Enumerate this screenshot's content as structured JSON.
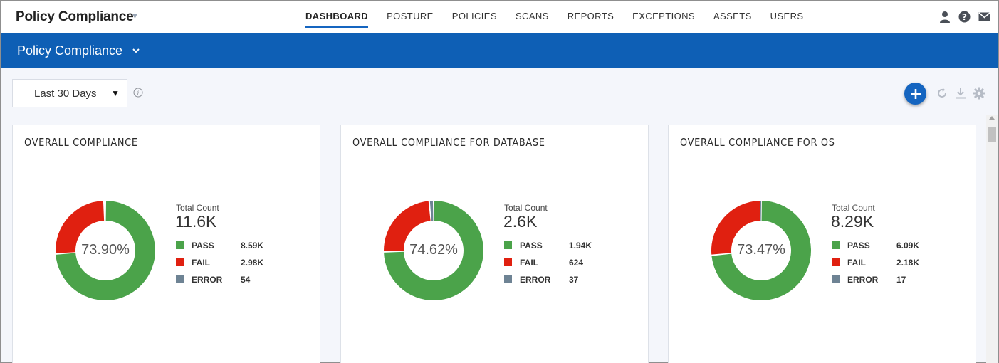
{
  "app": {
    "title": "Policy Compliance"
  },
  "nav": {
    "tabs": [
      {
        "label": "DASHBOARD",
        "active": true
      },
      {
        "label": "POSTURE"
      },
      {
        "label": "POLICIES"
      },
      {
        "label": "SCANS"
      },
      {
        "label": "REPORTS"
      },
      {
        "label": "EXCEPTIONS"
      },
      {
        "label": "ASSETS"
      },
      {
        "label": "USERS"
      }
    ],
    "icons": [
      "user-icon",
      "help-icon",
      "mail-icon"
    ]
  },
  "module": {
    "title": "Policy Compliance"
  },
  "toolbar": {
    "date_range": "Last 30 Days",
    "icons": [
      "info-icon",
      "add-icon",
      "refresh-icon",
      "download-icon",
      "settings-icon"
    ]
  },
  "colors": {
    "pass": "#4ba34a",
    "fail": "#e02010",
    "error": "#6e8394",
    "brand": "#0e5fb5"
  },
  "cards": [
    {
      "title": "OVERALL COMPLIANCE",
      "percent": "73.90%",
      "total_label": "Total Count",
      "total": "11.6K",
      "legend": [
        {
          "label": "PASS",
          "value": "8.59K"
        },
        {
          "label": "FAIL",
          "value": "2.98K"
        },
        {
          "label": "ERROR",
          "value": "54"
        }
      ]
    },
    {
      "title": "OVERALL COMPLIANCE FOR DATABASE",
      "percent": "74.62%",
      "total_label": "Total Count",
      "total": "2.6K",
      "legend": [
        {
          "label": "PASS",
          "value": "1.94K"
        },
        {
          "label": "FAIL",
          "value": "624"
        },
        {
          "label": "ERROR",
          "value": "37"
        }
      ]
    },
    {
      "title": "OVERALL COMPLIANCE FOR OS",
      "percent": "73.47%",
      "total_label": "Total Count",
      "total": "8.29K",
      "legend": [
        {
          "label": "PASS",
          "value": "6.09K"
        },
        {
          "label": "FAIL",
          "value": "2.18K"
        },
        {
          "label": "ERROR",
          "value": "17"
        }
      ]
    }
  ],
  "chart_data": [
    {
      "type": "pie",
      "title": "OVERALL COMPLIANCE",
      "categories": [
        "PASS",
        "FAIL",
        "ERROR"
      ],
      "values": [
        8590,
        2980,
        54
      ],
      "center_label": "73.90%"
    },
    {
      "type": "pie",
      "title": "OVERALL COMPLIANCE FOR DATABASE",
      "categories": [
        "PASS",
        "FAIL",
        "ERROR"
      ],
      "values": [
        1940,
        624,
        37
      ],
      "center_label": "74.62%"
    },
    {
      "type": "pie",
      "title": "OVERALL COMPLIANCE FOR OS",
      "categories": [
        "PASS",
        "FAIL",
        "ERROR"
      ],
      "values": [
        6090,
        2180,
        17
      ],
      "center_label": "73.47%"
    }
  ]
}
